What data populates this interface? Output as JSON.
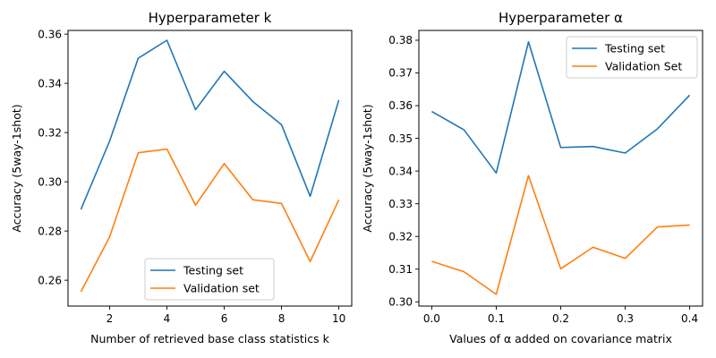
{
  "chart_data": [
    {
      "type": "line",
      "title": "Hyperparameter k",
      "xlabel": "Number of retrieved base class statistics k",
      "ylabel": "Accuracy (5way-1shot)",
      "xlim": [
        0.55,
        10.45
      ],
      "ylim": [
        0.2495,
        0.3615
      ],
      "x_ticks": [
        2,
        4,
        6,
        8,
        10
      ],
      "x_tick_labels": [
        "2",
        "4",
        "6",
        "8",
        "10"
      ],
      "y_ticks": [
        0.26,
        0.28,
        0.3,
        0.32,
        0.34,
        0.36
      ],
      "y_tick_labels": [
        "0.26",
        "0.28",
        "0.30",
        "0.32",
        "0.34",
        "0.36"
      ],
      "grid": false,
      "legend_position": "bottom-center",
      "x": [
        1,
        2,
        3,
        4,
        5,
        6,
        7,
        8,
        9,
        10
      ],
      "series": [
        {
          "name": "Testing set",
          "color": "#1f77b4",
          "values": [
            0.2888,
            0.3165,
            0.3502,
            0.3575,
            0.3293,
            0.3449,
            0.3326,
            0.3232,
            0.2941,
            0.3332
          ]
        },
        {
          "name": "Validation set",
          "color": "#ff7f0e",
          "values": [
            0.2553,
            0.2776,
            0.3118,
            0.3133,
            0.2905,
            0.3074,
            0.2927,
            0.2912,
            0.2676,
            0.2927
          ]
        }
      ]
    },
    {
      "type": "line",
      "title": "Hyperparameter α",
      "xlabel": "Values of α added on covariance matrix",
      "ylabel": "Accuracy (5way-1shot)",
      "xlim": [
        -0.02,
        0.42
      ],
      "ylim": [
        0.2987,
        0.383
      ],
      "x_ticks": [
        0.0,
        0.1,
        0.2,
        0.3,
        0.4
      ],
      "x_tick_labels": [
        "0.0",
        "0.1",
        "0.2",
        "0.3",
        "0.4"
      ],
      "y_ticks": [
        0.3,
        0.31,
        0.32,
        0.33,
        0.34,
        0.35,
        0.36,
        0.37,
        0.38
      ],
      "y_tick_labels": [
        "0.30",
        "0.31",
        "0.32",
        "0.33",
        "0.34",
        "0.35",
        "0.36",
        "0.37",
        "0.38"
      ],
      "grid": false,
      "legend_position": "top-right",
      "x": [
        0.0,
        0.05,
        0.1,
        0.15,
        0.2,
        0.25,
        0.3,
        0.35,
        0.4
      ],
      "series": [
        {
          "name": "Testing set",
          "color": "#1f77b4",
          "values": [
            0.3582,
            0.3526,
            0.3394,
            0.3795,
            0.3472,
            0.3475,
            0.3455,
            0.3529,
            0.3632
          ]
        },
        {
          "name": "Validation Set",
          "color": "#ff7f0e",
          "values": [
            0.3124,
            0.3092,
            0.3023,
            0.3386,
            0.3101,
            0.3167,
            0.3133,
            0.3229,
            0.3235
          ]
        }
      ]
    }
  ]
}
